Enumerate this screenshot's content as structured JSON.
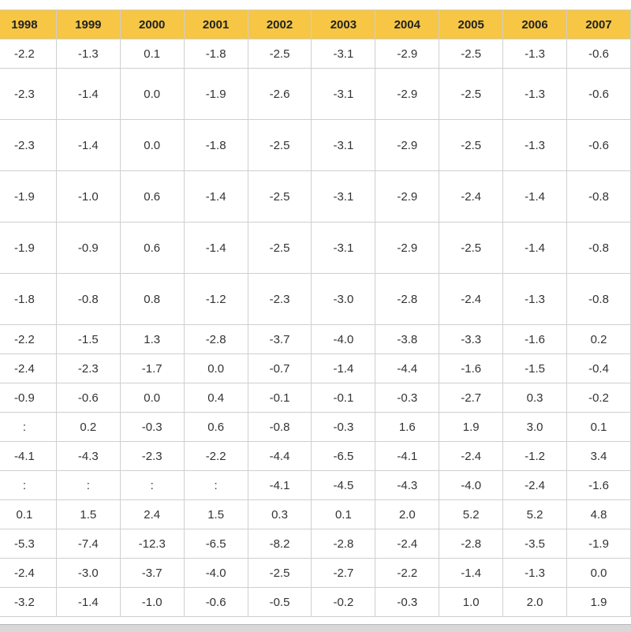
{
  "table": {
    "headers": [
      "1998",
      "1999",
      "2000",
      "2001",
      "2002",
      "2003",
      "2004",
      "2005",
      "2006",
      "2007"
    ],
    "rows": [
      {
        "size": "short",
        "cells": [
          "-2.2",
          "-1.3",
          "0.1",
          "-1.8",
          "-2.5",
          "-3.1",
          "-2.9",
          "-2.5",
          "-1.3",
          "-0.6"
        ]
      },
      {
        "size": "tall",
        "cells": [
          "-2.3",
          "-1.4",
          "0.0",
          "-1.9",
          "-2.6",
          "-3.1",
          "-2.9",
          "-2.5",
          "-1.3",
          "-0.6"
        ]
      },
      {
        "size": "tall",
        "cells": [
          "-2.3",
          "-1.4",
          "0.0",
          "-1.8",
          "-2.5",
          "-3.1",
          "-2.9",
          "-2.5",
          "-1.3",
          "-0.6"
        ]
      },
      {
        "size": "tall",
        "cells": [
          "-1.9",
          "-1.0",
          "0.6",
          "-1.4",
          "-2.5",
          "-3.1",
          "-2.9",
          "-2.4",
          "-1.4",
          "-0.8"
        ]
      },
      {
        "size": "tall",
        "cells": [
          "-1.9",
          "-0.9",
          "0.6",
          "-1.4",
          "-2.5",
          "-3.1",
          "-2.9",
          "-2.5",
          "-1.4",
          "-0.8"
        ]
      },
      {
        "size": "tall",
        "cells": [
          "-1.8",
          "-0.8",
          "0.8",
          "-1.2",
          "-2.3",
          "-3.0",
          "-2.8",
          "-2.4",
          "-1.3",
          "-0.8"
        ]
      },
      {
        "size": "short",
        "cells": [
          "-2.2",
          "-1.5",
          "1.3",
          "-2.8",
          "-3.7",
          "-4.0",
          "-3.8",
          "-3.3",
          "-1.6",
          "0.2"
        ]
      },
      {
        "size": "short",
        "cells": [
          "-2.4",
          "-2.3",
          "-1.7",
          "0.0",
          "-0.7",
          "-1.4",
          "-4.4",
          "-1.6",
          "-1.5",
          "-0.4"
        ]
      },
      {
        "size": "short",
        "cells": [
          "-0.9",
          "-0.6",
          "0.0",
          "0.4",
          "-0.1",
          "-0.1",
          "-0.3",
          "-2.7",
          "0.3",
          "-0.2"
        ]
      },
      {
        "size": "short",
        "cells": [
          ":",
          "0.2",
          "-0.3",
          "0.6",
          "-0.8",
          "-0.3",
          "1.6",
          "1.9",
          "3.0",
          "0.1"
        ]
      },
      {
        "size": "short",
        "cells": [
          "-4.1",
          "-4.3",
          "-2.3",
          "-2.2",
          "-4.4",
          "-6.5",
          "-4.1",
          "-2.4",
          "-1.2",
          "3.4"
        ]
      },
      {
        "size": "short",
        "cells": [
          ":",
          ":",
          ":",
          ":",
          "-4.1",
          "-4.5",
          "-4.3",
          "-4.0",
          "-2.4",
          "-1.6"
        ]
      },
      {
        "size": "short",
        "cells": [
          "0.1",
          "1.5",
          "2.4",
          "1.5",
          "0.3",
          "0.1",
          "2.0",
          "5.2",
          "5.2",
          "4.8"
        ]
      },
      {
        "size": "short",
        "cells": [
          "-5.3",
          "-7.4",
          "-12.3",
          "-6.5",
          "-8.2",
          "-2.8",
          "-2.4",
          "-2.8",
          "-3.5",
          "-1.9"
        ]
      },
      {
        "size": "short",
        "cells": [
          "-2.4",
          "-3.0",
          "-3.7",
          "-4.0",
          "-2.5",
          "-2.7",
          "-2.2",
          "-1.4",
          "-1.3",
          "0.0"
        ]
      },
      {
        "size": "short",
        "cells": [
          "-3.2",
          "-1.4",
          "-1.0",
          "-0.6",
          "-0.5",
          "-0.2",
          "-0.3",
          "1.0",
          "2.0",
          "1.9"
        ]
      }
    ]
  }
}
